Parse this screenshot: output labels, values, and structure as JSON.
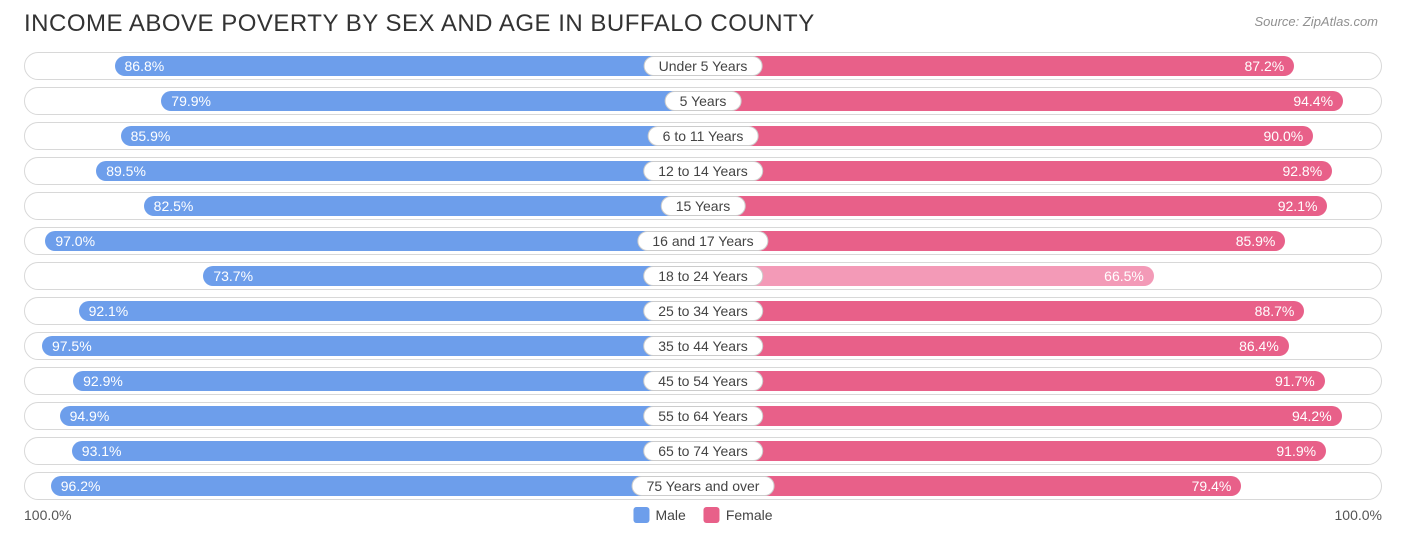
{
  "title": "INCOME ABOVE POVERTY BY SEX AND AGE IN BUFFALO COUNTY",
  "source": "Source: ZipAtlas.com",
  "chart": {
    "type": "diverging-bar",
    "male_color": "#6d9eeb",
    "female_color": "#e86089",
    "female_alt_color": "#f39ab7",
    "background_color": "#ffffff",
    "border_color": "#d8d8d8",
    "text_color": "#ffffff",
    "axis_max_label": "100.0%",
    "legend": {
      "male": "Male",
      "female": "Female"
    },
    "rows": [
      {
        "category": "Under 5 Years",
        "male": 86.8,
        "female": 87.2
      },
      {
        "category": "5 Years",
        "male": 79.9,
        "female": 94.4
      },
      {
        "category": "6 to 11 Years",
        "male": 85.9,
        "female": 90.0
      },
      {
        "category": "12 to 14 Years",
        "male": 89.5,
        "female": 92.8
      },
      {
        "category": "15 Years",
        "male": 82.5,
        "female": 92.1
      },
      {
        "category": "16 and 17 Years",
        "male": 97.0,
        "female": 85.9
      },
      {
        "category": "18 to 24 Years",
        "male": 73.7,
        "female": 66.5,
        "female_alt": true
      },
      {
        "category": "25 to 34 Years",
        "male": 92.1,
        "female": 88.7
      },
      {
        "category": "35 to 44 Years",
        "male": 97.5,
        "female": 86.4
      },
      {
        "category": "45 to 54 Years",
        "male": 92.9,
        "female": 91.7
      },
      {
        "category": "55 to 64 Years",
        "male": 94.9,
        "female": 94.2
      },
      {
        "category": "65 to 74 Years",
        "male": 93.1,
        "female": 91.9
      },
      {
        "category": "75 Years and over",
        "male": 96.2,
        "female": 79.4
      }
    ]
  }
}
